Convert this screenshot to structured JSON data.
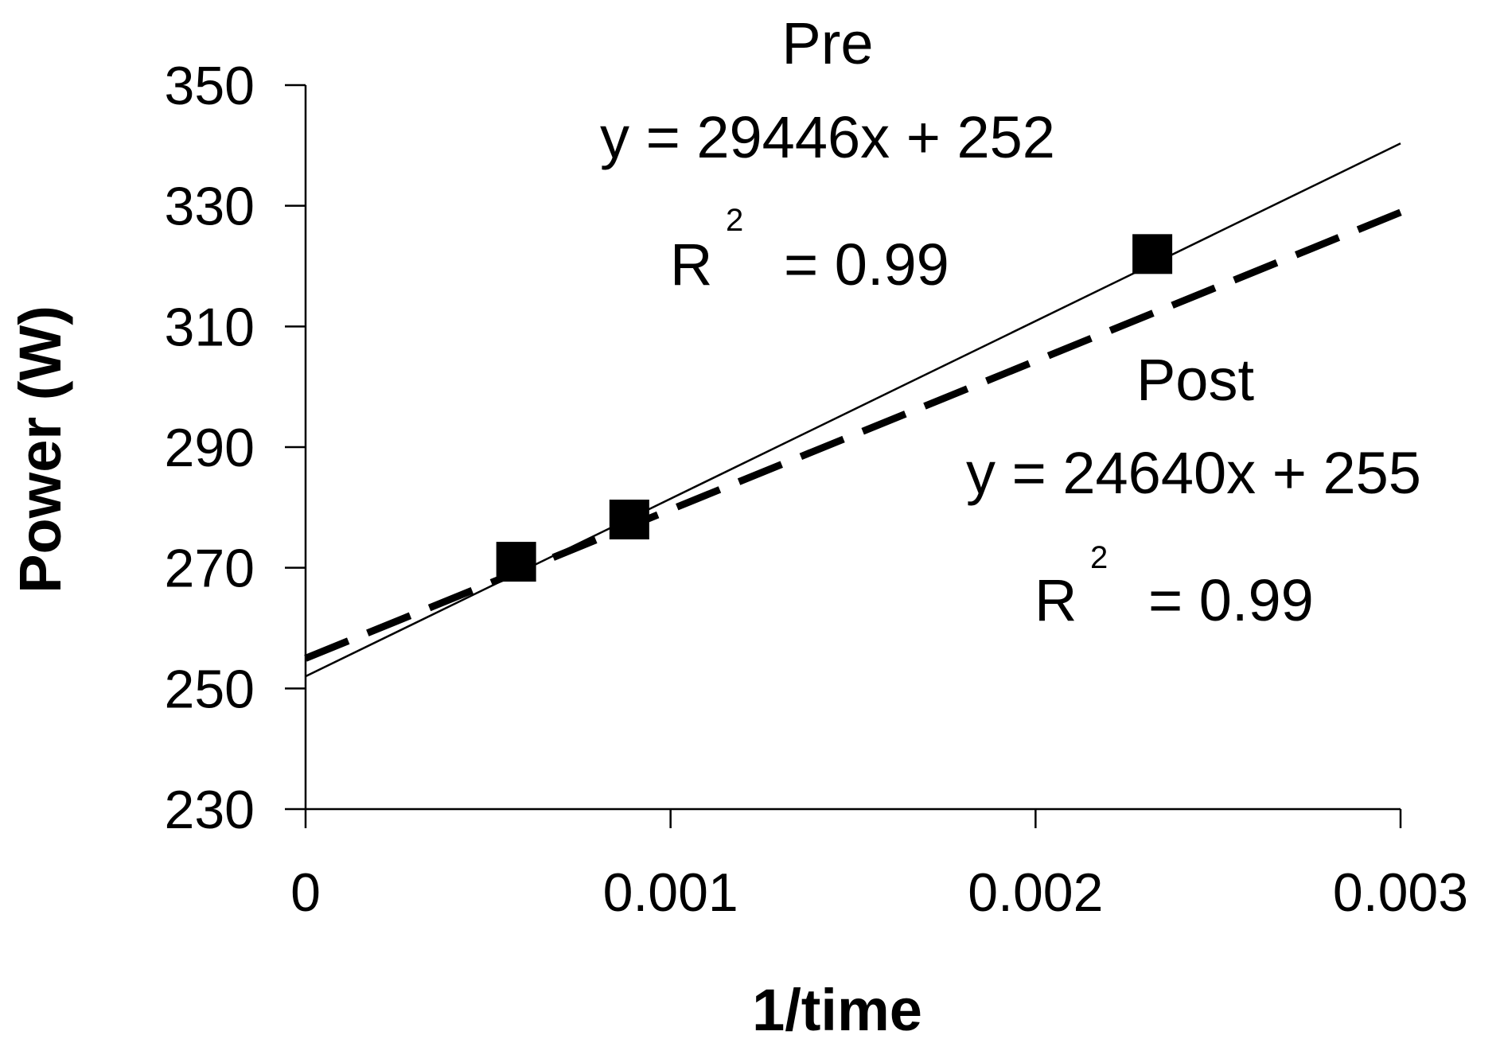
{
  "chart_data": {
    "type": "scatter",
    "xlabel": "1/time",
    "ylabel": "Power (W)",
    "xlim": [
      0,
      0.003
    ],
    "ylim": [
      230,
      350
    ],
    "x_ticks": [
      "0",
      "0.001",
      "0.002",
      "0.003"
    ],
    "y_ticks": [
      "230",
      "250",
      "270",
      "290",
      "310",
      "330",
      "350"
    ],
    "x_tick_values": [
      0,
      0.001,
      0.002,
      0.003
    ],
    "y_tick_values": [
      230,
      250,
      270,
      290,
      310,
      330,
      350
    ],
    "grid": false,
    "points": {
      "marker": "square",
      "x": [
        0.000577,
        0.000887,
        0.00232
      ],
      "y": [
        271,
        278,
        322
      ]
    },
    "series": [
      {
        "name": "Pre",
        "line_style": "solid",
        "equation": "y = 29446x + 252",
        "slope": 29446,
        "intercept": 252,
        "r2_label": "R",
        "r2_sup": "2",
        "r2_value": "= 0.99"
      },
      {
        "name": "Post",
        "line_style": "dashed",
        "equation": "y = 24640x + 255",
        "slope": 24640,
        "intercept": 255,
        "r2_label": "R",
        "r2_sup": "2",
        "r2_value": "= 0.99"
      }
    ]
  }
}
